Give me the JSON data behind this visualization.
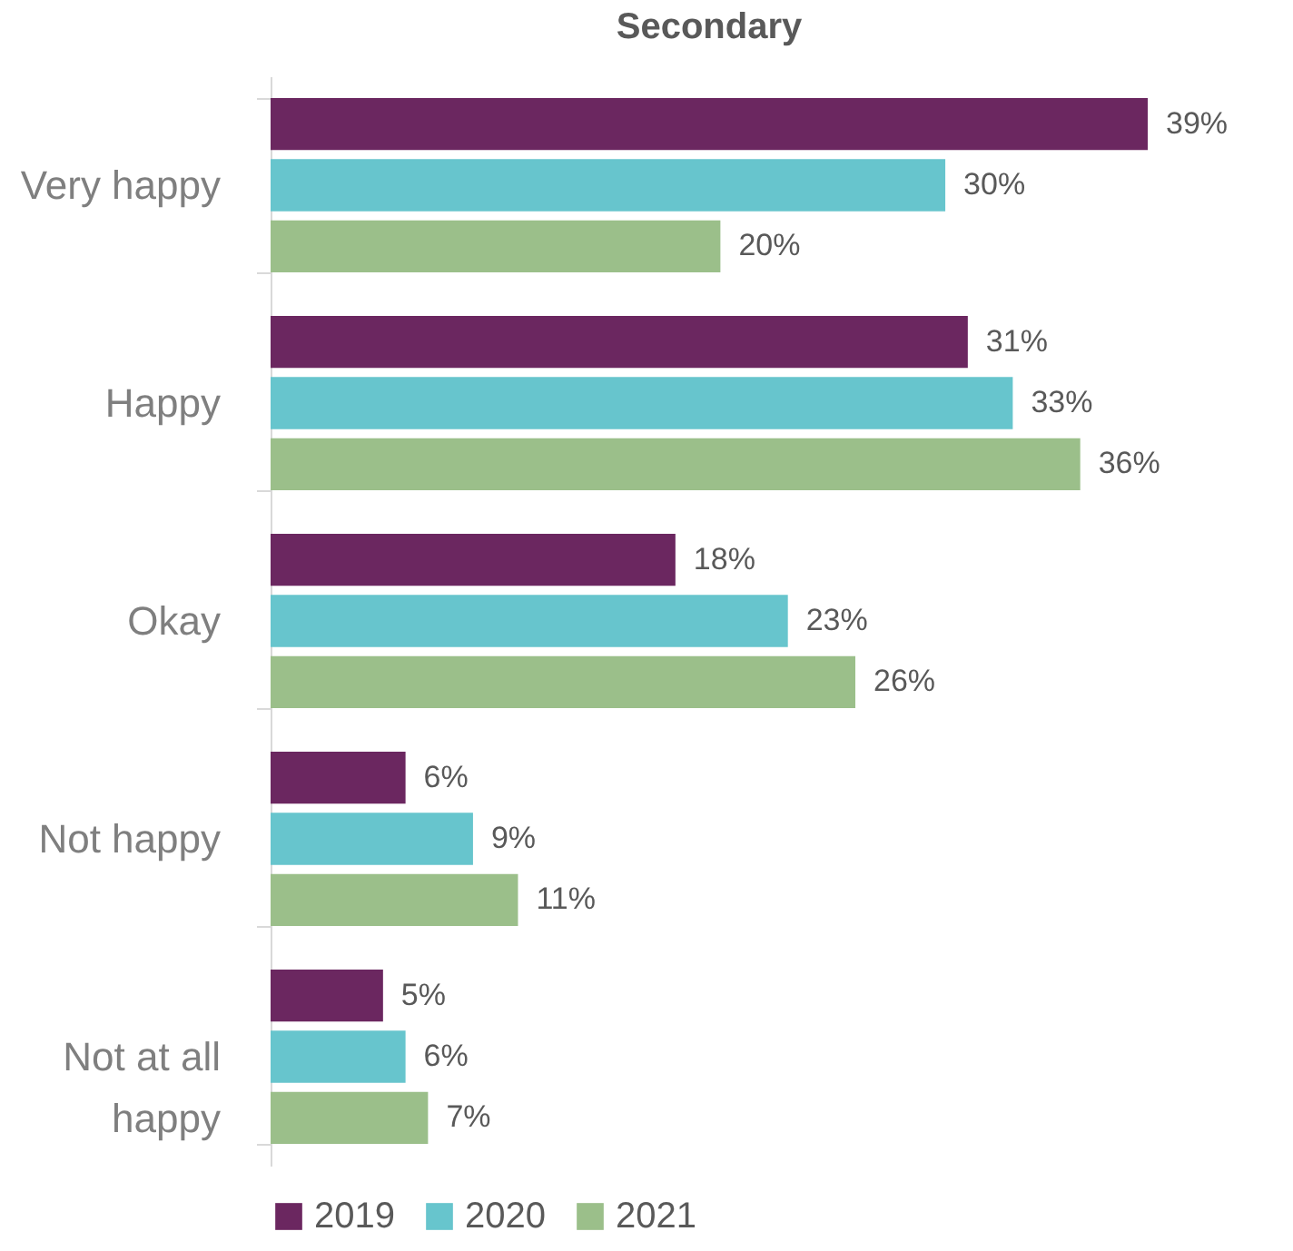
{
  "chart_data": {
    "type": "bar",
    "orientation": "horizontal",
    "title": "Secondary",
    "categories": [
      "Very happy",
      "Happy",
      "Okay",
      "Not happy",
      "Not at all happy"
    ],
    "series": [
      {
        "name": "2019",
        "color": "#6b2760",
        "values": [
          39,
          31,
          18,
          6,
          5
        ],
        "value_labels": [
          "39%",
          "31%",
          "18%",
          "6%",
          "5%"
        ]
      },
      {
        "name": "2020",
        "color": "#67c5cd",
        "values": [
          30,
          33,
          23,
          9,
          6
        ],
        "value_labels": [
          "30%",
          "33%",
          "23%",
          "9%",
          "6%"
        ]
      },
      {
        "name": "2021",
        "color": "#9bbf8a",
        "values": [
          20,
          36,
          26,
          11,
          7
        ],
        "value_labels": [
          "20%",
          "36%",
          "26%",
          "11%",
          "7%"
        ]
      }
    ],
    "legend": "bottom",
    "grid": false
  }
}
